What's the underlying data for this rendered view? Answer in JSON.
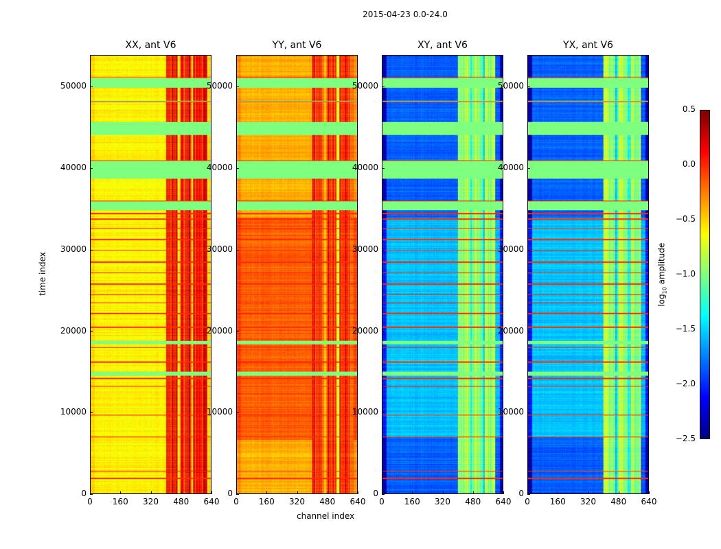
{
  "chart_data": {
    "type": "heatmap",
    "title": "2015-04-23 0.0-24.0",
    "colormap": "jet",
    "xlabel": "channel index",
    "ylabel": "time index",
    "xlim": [
      0,
      640
    ],
    "ylim": [
      0,
      53900
    ],
    "xticks": [
      "0",
      "160",
      "320",
      "480",
      "640"
    ],
    "yticks": [
      "0",
      "10000",
      "20000",
      "30000",
      "40000",
      "50000"
    ],
    "ytick_values": [
      0,
      10000,
      20000,
      30000,
      40000,
      50000
    ],
    "xtick_values": [
      0,
      160,
      320,
      480,
      640
    ],
    "colorbar": {
      "label": "log10 amplitude",
      "label_main": "log",
      "label_sub": "10",
      "label_rest": " amplitude",
      "range": [
        -2.5,
        0.5
      ],
      "ticks": [
        "0.5",
        "0.0",
        "−0.5",
        "−1.0",
        "−1.5",
        "−2.0",
        "−2.5"
      ],
      "tick_values": [
        0.5,
        0.0,
        -0.5,
        -1.0,
        -1.5,
        -2.0,
        -2.5
      ]
    },
    "flagged_time_ranges": [
      [
        38800,
        41000
      ],
      [
        34900,
        36000
      ],
      [
        44200,
        45800
      ],
      [
        50000,
        51200
      ],
      [
        48300,
        48400
      ],
      [
        14500,
        15000
      ],
      [
        18400,
        18800
      ]
    ],
    "flagged_value": -1.0,
    "bright_time_lines": [
      1900,
      2800,
      7000,
      9700,
      13200,
      14200,
      16200,
      18000,
      20500,
      22200,
      23500,
      24500,
      25800,
      27200,
      28500,
      30000,
      31300,
      32700,
      33800,
      34500,
      36000,
      41000,
      48300,
      51300
    ],
    "panels": [
      {
        "title": "XX, ant V6",
        "base": -0.6,
        "band": [
          400,
          620
        ],
        "band_value": 0.05,
        "low_region": {
          "t": [
            0,
            53900
          ],
          "value": -0.6
        }
      },
      {
        "title": "YY, ant V6",
        "base": -0.4,
        "band": [
          400,
          620
        ],
        "band_value": 0.0,
        "low_region": {
          "t": [
            6600,
            34000
          ],
          "value": -0.15
        }
      },
      {
        "title": "XY, ant V6",
        "base": -1.85,
        "band": [
          400,
          600
        ],
        "band_value": -0.9,
        "low_region": {
          "t": [
            7000,
            34000
          ],
          "value": -1.55
        }
      },
      {
        "title": "YX, ant V6",
        "base": -1.85,
        "band": [
          400,
          600
        ],
        "band_value": -0.9,
        "low_region": {
          "t": [
            7000,
            34000
          ],
          "value": -1.55
        }
      }
    ]
  }
}
